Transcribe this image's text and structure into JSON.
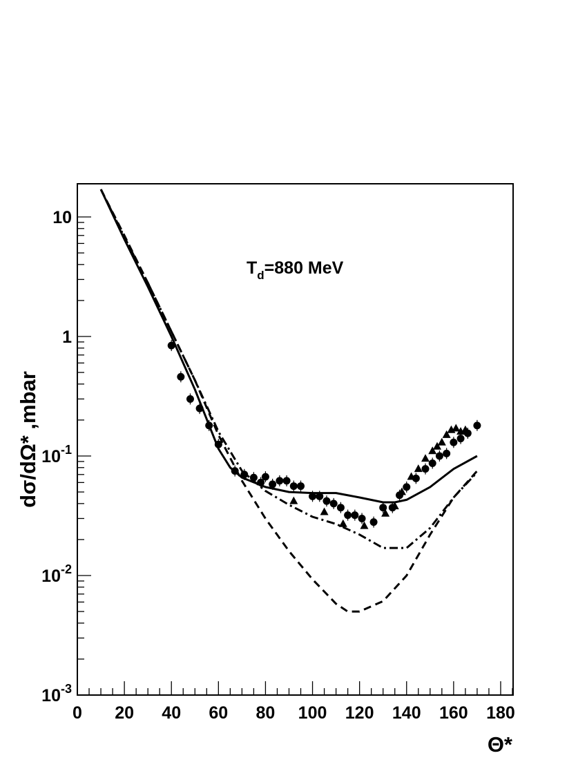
{
  "chart_data": {
    "type": "scatter",
    "annotation": {
      "main": "T",
      "sub": "d",
      "rest": "=880 MeV"
    },
    "xlabel": "Θ*",
    "ylabel": "dσ/dΩ* ,mbar",
    "xlim": [
      0,
      185
    ],
    "ylim": [
      0.001,
      18
    ],
    "yscale": "log",
    "x_ticks": [
      {
        "value": 0,
        "label": "0"
      },
      {
        "value": 20,
        "label": "20"
      },
      {
        "value": 40,
        "label": "40"
      },
      {
        "value": 60,
        "label": "60"
      },
      {
        "value": 80,
        "label": "80"
      },
      {
        "value": 100,
        "label": "100"
      },
      {
        "value": 120,
        "label": "120"
      },
      {
        "value": 140,
        "label": "140"
      },
      {
        "value": 160,
        "label": "160"
      },
      {
        "value": 180,
        "label": "180"
      }
    ],
    "y_ticks": [
      {
        "value": 10,
        "base": "10",
        "exp": ""
      },
      {
        "value": 1,
        "base": "1",
        "exp": ""
      },
      {
        "value": 0.1,
        "base": "10",
        "exp": "-1"
      },
      {
        "value": 0.01,
        "base": "10",
        "exp": "-2"
      },
      {
        "value": 0.001,
        "base": "10",
        "exp": "-3"
      }
    ],
    "series": [
      {
        "name": "solid",
        "kind": "line",
        "style": "solid",
        "x": [
          10,
          20,
          30,
          40,
          50,
          60,
          65,
          70,
          80,
          90,
          100,
          110,
          120,
          130,
          135,
          140,
          150,
          160,
          170
        ],
        "y": [
          17,
          6.5,
          2.6,
          1.0,
          0.36,
          0.115,
          0.08,
          0.066,
          0.055,
          0.05,
          0.049,
          0.049,
          0.045,
          0.041,
          0.041,
          0.043,
          0.055,
          0.078,
          0.1
        ]
      },
      {
        "name": "dashed",
        "kind": "line",
        "style": "dashed",
        "x": [
          10,
          20,
          30,
          40,
          50,
          60,
          70,
          80,
          90,
          100,
          110,
          115,
          120,
          130,
          140,
          150,
          160,
          170
        ],
        "y": [
          17,
          7.0,
          2.8,
          1.1,
          0.43,
          0.15,
          0.062,
          0.03,
          0.016,
          0.0093,
          0.0058,
          0.005,
          0.005,
          0.0061,
          0.01,
          0.022,
          0.045,
          0.075
        ]
      },
      {
        "name": "dash-dot",
        "kind": "line",
        "style": "dashdot",
        "x": [
          10,
          20,
          30,
          40,
          50,
          60,
          70,
          80,
          90,
          100,
          110,
          120,
          130,
          140,
          150,
          160,
          170
        ],
        "y": [
          17,
          6.8,
          2.8,
          1.1,
          0.43,
          0.16,
          0.075,
          0.051,
          0.039,
          0.031,
          0.027,
          0.022,
          0.017,
          0.017,
          0.025,
          0.045,
          0.073
        ]
      },
      {
        "name": "circles",
        "kind": "points",
        "marker": "circle",
        "x": [
          40,
          44,
          48,
          52,
          56,
          60,
          67,
          71,
          75,
          78,
          80,
          83,
          86,
          89,
          92,
          95,
          100,
          103,
          106,
          109,
          112,
          115,
          118,
          121,
          126,
          130,
          134,
          137,
          140,
          144,
          148,
          151,
          154,
          157,
          160,
          163,
          166,
          170
        ],
        "y": [
          0.84,
          0.46,
          0.3,
          0.25,
          0.18,
          0.125,
          0.075,
          0.07,
          0.066,
          0.06,
          0.067,
          0.058,
          0.062,
          0.062,
          0.056,
          0.056,
          0.046,
          0.046,
          0.042,
          0.04,
          0.037,
          0.032,
          0.032,
          0.03,
          0.028,
          0.037,
          0.037,
          0.047,
          0.055,
          0.065,
          0.078,
          0.087,
          0.1,
          0.105,
          0.13,
          0.14,
          0.155,
          0.18
        ]
      },
      {
        "name": "triangles",
        "kind": "points",
        "marker": "triangle",
        "x": [
          92,
          105,
          113,
          122,
          131,
          135,
          138,
          142,
          145,
          148,
          151,
          153,
          155,
          157,
          159,
          161,
          163,
          165
        ],
        "y": [
          0.042,
          0.034,
          0.027,
          0.026,
          0.033,
          0.038,
          0.05,
          0.067,
          0.078,
          0.095,
          0.11,
          0.12,
          0.13,
          0.15,
          0.165,
          0.17,
          0.16,
          0.165
        ]
      }
    ]
  }
}
